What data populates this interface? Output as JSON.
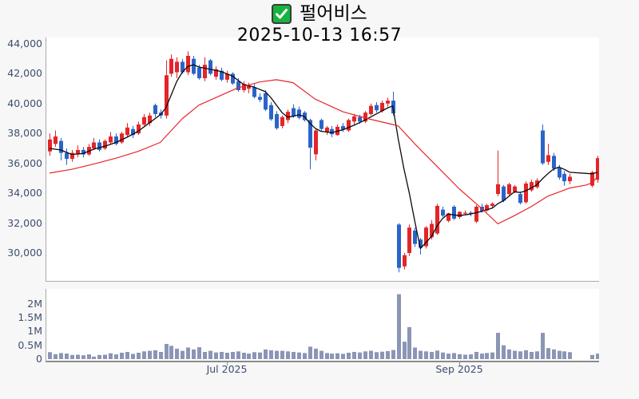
{
  "header": {
    "checkbox_icon": "green-checked-checkbox",
    "symbol": "펄어비스",
    "datetime": "2025-10-13 16:57"
  },
  "colors": {
    "up_candle": "#e32528",
    "down_candle": "#2a64c8",
    "ma_short": "#0a0a0a",
    "ma_long": "#e8252a",
    "volume_bar": "#8b95b5",
    "axis_label": "#3e4d6d",
    "plot_background": "#ffffff",
    "page_background": "#f7f7f8",
    "checkbox_green": "#17b33e"
  },
  "chart_data": {
    "type": "candlestick",
    "title": "펄어비스",
    "subtitle": "2025-10-13 16:57",
    "grid": false,
    "legend": null,
    "price_axis": {
      "ylim": [
        28600,
        44430
      ],
      "ticks": [
        {
          "value": 44000,
          "label": "44,000"
        },
        {
          "value": 42000,
          "label": "42,000"
        },
        {
          "value": 40000,
          "label": "40,000"
        },
        {
          "value": 38000,
          "label": "38,000"
        },
        {
          "value": 36000,
          "label": "36,000"
        },
        {
          "value": 34000,
          "label": "34,000"
        },
        {
          "value": 32000,
          "label": "32,000"
        },
        {
          "value": 30000,
          "label": "30,000"
        }
      ]
    },
    "volume_axis": {
      "ylim": [
        0,
        2550000
      ],
      "ticks": [
        {
          "value": 2000000,
          "label": "2M"
        },
        {
          "value": 1500000,
          "label": "1.5M"
        },
        {
          "value": 1000000,
          "label": "1M"
        },
        {
          "value": 500000,
          "label": "0.5M"
        },
        {
          "value": 0,
          "label": "0"
        }
      ]
    },
    "x_axis": {
      "ticks": [
        {
          "label": "Jul 2025",
          "index": 32
        },
        {
          "label": "Sep 2025",
          "index": 74
        }
      ]
    },
    "series": {
      "note": "each candle is [open, high, low, close, volume]; null = market holiday gap",
      "candles_ohlcv": [
        [
          36800,
          38000,
          36500,
          37600,
          250000
        ],
        [
          37300,
          38200,
          37100,
          37800,
          180000
        ],
        [
          37500,
          37700,
          36200,
          36700,
          220000
        ],
        [
          36700,
          37000,
          35900,
          36300,
          200000
        ],
        [
          36300,
          36900,
          36100,
          36700,
          150000
        ],
        [
          36600,
          37200,
          36400,
          36900,
          160000
        ],
        [
          36900,
          37100,
          36400,
          36600,
          140000
        ],
        [
          36600,
          37300,
          36500,
          37100,
          170000
        ],
        [
          37000,
          37700,
          36900,
          37400,
          90000
        ],
        [
          37400,
          37600,
          36800,
          36900,
          150000
        ],
        [
          37000,
          37600,
          36900,
          37500,
          160000
        ],
        [
          37400,
          38100,
          37300,
          37800,
          210000
        ],
        [
          37800,
          38000,
          37200,
          37300,
          170000
        ],
        [
          37400,
          38100,
          37300,
          38000,
          230000
        ],
        [
          37900,
          38700,
          37800,
          38400,
          260000
        ],
        [
          38300,
          38500,
          37700,
          37900,
          190000
        ],
        [
          38000,
          38800,
          37900,
          38600,
          230000
        ],
        [
          38600,
          39300,
          38500,
          39100,
          280000
        ],
        [
          38700,
          39400,
          38500,
          39200,
          300000
        ],
        [
          39900,
          40000,
          39100,
          39300,
          320000
        ],
        [
          39400,
          39600,
          39000,
          39200,
          260000
        ],
        [
          39200,
          42900,
          39000,
          41900,
          550000
        ],
        [
          42000,
          43300,
          41800,
          43000,
          480000
        ],
        [
          42100,
          43100,
          41700,
          42800,
          380000
        ],
        [
          42800,
          43000,
          42000,
          42100,
          300000
        ],
        [
          42100,
          43500,
          41900,
          43200,
          420000
        ],
        [
          43000,
          43200,
          41900,
          42000,
          350000
        ],
        [
          42400,
          42600,
          41600,
          41700,
          430000
        ],
        [
          41700,
          43100,
          41500,
          42600,
          260000
        ],
        [
          42900,
          43000,
          41900,
          42000,
          300000
        ],
        [
          41800,
          42500,
          41600,
          42300,
          240000
        ],
        [
          42200,
          42400,
          41500,
          41600,
          260000
        ],
        [
          41600,
          42200,
          41400,
          42000,
          230000
        ],
        [
          42000,
          42100,
          41250,
          41350,
          260000
        ],
        [
          41500,
          41700,
          40800,
          40900,
          280000
        ],
        [
          40900,
          41500,
          40750,
          41300,
          230000
        ],
        [
          41000,
          41400,
          40700,
          41200,
          200000
        ],
        [
          41100,
          41300,
          40350,
          40450,
          250000
        ],
        [
          40450,
          40700,
          40100,
          40250,
          240000
        ],
        [
          40700,
          40900,
          39500,
          39600,
          350000
        ],
        [
          39900,
          40100,
          38850,
          38950,
          320000
        ],
        [
          39300,
          39500,
          38250,
          38350,
          300000
        ],
        [
          38500,
          39200,
          38350,
          39100,
          300000
        ],
        [
          38900,
          39600,
          38700,
          39450,
          280000
        ],
        [
          39700,
          39950,
          39050,
          39150,
          260000
        ],
        [
          39600,
          39800,
          38950,
          39050,
          240000
        ],
        [
          39400,
          39500,
          38800,
          38900,
          220000
        ],
        [
          38900,
          39000,
          35600,
          37050,
          450000
        ],
        [
          36600,
          38300,
          36200,
          38200,
          380000
        ],
        [
          38900,
          39000,
          38150,
          38300,
          300000
        ],
        [
          38100,
          38500,
          37900,
          38400,
          220000
        ],
        [
          38300,
          38500,
          37750,
          37950,
          200000
        ],
        [
          37900,
          38600,
          37850,
          38450,
          210000
        ],
        [
          38500,
          38700,
          38100,
          38250,
          190000
        ],
        [
          38200,
          39000,
          38100,
          38900,
          230000
        ],
        [
          38800,
          39300,
          38600,
          39150,
          260000
        ],
        [
          39100,
          39250,
          38650,
          38800,
          240000
        ],
        [
          38800,
          39500,
          38700,
          39400,
          280000
        ],
        [
          39300,
          40000,
          39200,
          39850,
          300000
        ],
        [
          39900,
          40100,
          39400,
          39550,
          250000
        ],
        [
          39500,
          40200,
          39400,
          40050,
          270000
        ],
        [
          40000,
          40400,
          39800,
          40200,
          290000
        ],
        [
          40200,
          40800,
          39200,
          39350,
          330000
        ],
        [
          31900,
          32000,
          28700,
          29000,
          2350000
        ],
        [
          29100,
          30000,
          28900,
          29850,
          630000
        ],
        [
          30000,
          31900,
          29800,
          31700,
          1160000
        ],
        [
          31500,
          31700,
          30400,
          30600,
          420000
        ],
        [
          30900,
          31000,
          29900,
          30350,
          300000
        ],
        [
          30450,
          31800,
          30300,
          31700,
          280000
        ],
        [
          31050,
          32200,
          30900,
          31950,
          260000
        ],
        [
          31300,
          33300,
          31200,
          33150,
          310000
        ],
        [
          32900,
          33100,
          32400,
          32500,
          240000
        ],
        [
          32150,
          32700,
          32050,
          32650,
          200000
        ],
        [
          33100,
          33200,
          32200,
          32300,
          220000
        ],
        [
          32400,
          32800,
          32300,
          32750,
          180000
        ],
        [
          32650,
          32850,
          32550,
          32700,
          160000
        ],
        [
          32700,
          32800,
          32450,
          32600,
          170000
        ],
        [
          32100,
          33200,
          32000,
          33100,
          260000
        ],
        [
          33100,
          33300,
          32700,
          32800,
          200000
        ],
        [
          32850,
          33300,
          32750,
          33200,
          220000
        ],
        [
          33150,
          33400,
          33000,
          33300,
          240000
        ],
        [
          33950,
          36850,
          33800,
          34600,
          950000
        ],
        [
          34450,
          34550,
          33400,
          33500,
          500000
        ],
        [
          33950,
          34700,
          33850,
          34600,
          350000
        ],
        [
          34100,
          34550,
          34000,
          34450,
          300000
        ],
        [
          33950,
          34100,
          33250,
          33350,
          280000
        ],
        [
          33400,
          34800,
          33300,
          34650,
          320000
        ],
        [
          34200,
          34900,
          34100,
          34750,
          260000
        ],
        [
          34400,
          35000,
          34300,
          34850,
          280000
        ],
        [
          38200,
          38600,
          35900,
          36000,
          950000
        ],
        [
          36100,
          37300,
          35900,
          36550,
          400000
        ],
        [
          36500,
          36700,
          35500,
          35650,
          350000
        ],
        [
          35700,
          35900,
          34900,
          35050,
          300000
        ],
        [
          35300,
          35500,
          34500,
          34800,
          280000
        ],
        [
          34800,
          35300,
          34600,
          35100,
          250000
        ],
        null,
        null,
        null,
        [
          34500,
          35500,
          34400,
          35400,
          150000
        ],
        [
          34900,
          36500,
          34700,
          36350,
          200000
        ]
      ],
      "ma_short_black_keypoints": [
        [
          0,
          37000
        ],
        [
          2,
          36900
        ],
        [
          4,
          36600
        ],
        [
          6,
          36650
        ],
        [
          8,
          36950
        ],
        [
          10,
          37150
        ],
        [
          12,
          37400
        ],
        [
          14,
          37750
        ],
        [
          16,
          38150
        ],
        [
          18,
          38700
        ],
        [
          20,
          39250
        ],
        [
          21,
          39700
        ],
        [
          22,
          40600
        ],
        [
          23,
          41500
        ],
        [
          24,
          42100
        ],
        [
          25,
          42500
        ],
        [
          26,
          42600
        ],
        [
          27,
          42450
        ],
        [
          29,
          42300
        ],
        [
          31,
          42150
        ],
        [
          33,
          41850
        ],
        [
          35,
          41300
        ],
        [
          37,
          41100
        ],
        [
          39,
          40800
        ],
        [
          40,
          40400
        ],
        [
          41,
          39900
        ],
        [
          42,
          39400
        ],
        [
          43,
          39100
        ],
        [
          44,
          39150
        ],
        [
          45,
          39250
        ],
        [
          46,
          39150
        ],
        [
          47,
          38700
        ],
        [
          48,
          38350
        ],
        [
          49,
          38150
        ],
        [
          50,
          38100
        ],
        [
          51,
          38050
        ],
        [
          53,
          38250
        ],
        [
          55,
          38550
        ],
        [
          57,
          38900
        ],
        [
          59,
          39300
        ],
        [
          61,
          39700
        ],
        [
          62,
          39850
        ],
        [
          63,
          37630
        ],
        [
          64,
          35690
        ],
        [
          65,
          34020
        ],
        [
          66,
          32100
        ],
        [
          67,
          30300
        ],
        [
          68,
          30700
        ],
        [
          69,
          31100
        ],
        [
          70,
          31800
        ],
        [
          71,
          32300
        ],
        [
          72,
          32600
        ],
        [
          74,
          32500
        ],
        [
          76,
          32600
        ],
        [
          78,
          32780
        ],
        [
          80,
          33000
        ],
        [
          81,
          33300
        ],
        [
          82,
          33500
        ],
        [
          83,
          33800
        ],
        [
          84,
          34100
        ],
        [
          85,
          34050
        ],
        [
          86,
          34150
        ],
        [
          87,
          34350
        ],
        [
          88,
          34550
        ],
        [
          89,
          34950
        ],
        [
          90,
          35300
        ],
        [
          91,
          35600
        ],
        [
          92,
          35750
        ],
        [
          93,
          35600
        ],
        [
          94,
          35400
        ],
        [
          98,
          35300
        ],
        [
          99,
          35400
        ]
      ],
      "ma_long_red_keypoints": [
        [
          0,
          35350
        ],
        [
          4,
          35600
        ],
        [
          8,
          35950
        ],
        [
          12,
          36350
        ],
        [
          16,
          36800
        ],
        [
          20,
          37400
        ],
        [
          22,
          38200
        ],
        [
          24,
          39000
        ],
        [
          27,
          39900
        ],
        [
          30,
          40400
        ],
        [
          34,
          41050
        ],
        [
          38,
          41450
        ],
        [
          41,
          41600
        ],
        [
          44,
          41400
        ],
        [
          48,
          40300
        ],
        [
          53,
          39450
        ],
        [
          58,
          38950
        ],
        [
          62,
          38600
        ],
        [
          63,
          38500
        ],
        [
          66,
          37300
        ],
        [
          70,
          35800
        ],
        [
          74,
          34300
        ],
        [
          78,
          33000
        ],
        [
          81,
          31950
        ],
        [
          84,
          32500
        ],
        [
          87,
          33100
        ],
        [
          90,
          33800
        ],
        [
          94,
          34350
        ],
        [
          97,
          34550
        ],
        [
          98,
          34700
        ],
        [
          99,
          35100
        ]
      ]
    }
  }
}
